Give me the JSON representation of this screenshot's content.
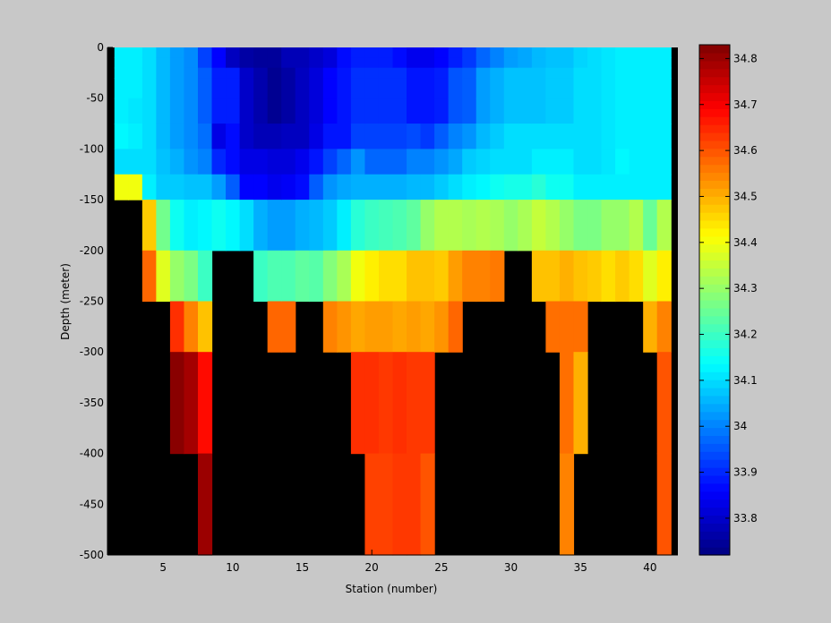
{
  "chart_data": {
    "type": "heatmap",
    "title": "",
    "xlabel": "Station (number)",
    "ylabel": "Depth (meter)",
    "xlim": [
      1,
      42
    ],
    "ylim": [
      -500,
      0
    ],
    "x_ticks": [
      5,
      10,
      15,
      20,
      25,
      30,
      35,
      40
    ],
    "y_ticks": [
      0,
      -50,
      -100,
      -150,
      -200,
      -250,
      -300,
      -350,
      -400,
      -450,
      -500
    ],
    "depth_levels": [
      0,
      -10,
      -20,
      -30,
      -50,
      -75,
      -100,
      -125,
      -150,
      -200,
      -250,
      -300,
      -400,
      -500
    ],
    "colorbar": {
      "colormap": "jet",
      "range": [
        33.72,
        34.83
      ],
      "ticks": [
        33.8,
        33.9,
        34,
        34.1,
        34.2,
        34.3,
        34.4,
        34.5,
        34.6,
        34.7,
        34.8
      ]
    },
    "no_data_color": "#000000",
    "background_color": "#c8c8c8",
    "stations": [
      {
        "x": 2,
        "values": [
          34.12,
          34.12,
          34.12,
          34.12,
          34.12,
          34.13,
          34.1,
          34.4,
          null,
          null,
          null,
          null,
          null
        ]
      },
      {
        "x": 3,
        "values": [
          34.12,
          34.12,
          34.12,
          34.12,
          34.11,
          34.12,
          34.1,
          34.4,
          null,
          null,
          null,
          null,
          null
        ]
      },
      {
        "x": 4,
        "values": [
          34.1,
          34.1,
          34.1,
          34.1,
          34.1,
          34.1,
          34.1,
          34.12,
          34.47,
          34.58,
          null,
          null,
          null
        ]
      },
      {
        "x": 5,
        "values": [
          34.06,
          34.06,
          34.06,
          34.06,
          34.06,
          34.06,
          34.07,
          34.08,
          34.26,
          34.38,
          null,
          null,
          null
        ]
      },
      {
        "x": 6,
        "values": [
          34.03,
          34.03,
          34.03,
          34.03,
          34.03,
          34.03,
          34.05,
          34.08,
          34.15,
          34.3,
          34.64,
          34.82,
          null
        ]
      },
      {
        "x": 7,
        "values": [
          34.01,
          34.01,
          34.01,
          34.01,
          34.01,
          34.01,
          34.02,
          34.07,
          34.12,
          34.27,
          34.55,
          34.79,
          null
        ]
      },
      {
        "x": 8,
        "values": [
          33.93,
          33.93,
          33.96,
          33.96,
          33.96,
          33.98,
          34.0,
          34.07,
          34.13,
          34.2,
          34.48,
          34.68,
          34.8
        ]
      },
      {
        "x": 9,
        "values": [
          33.86,
          33.86,
          33.89,
          33.89,
          33.89,
          33.83,
          33.9,
          34.03,
          34.15,
          null,
          null,
          null,
          null
        ]
      },
      {
        "x": 10,
        "values": [
          33.79,
          33.79,
          33.89,
          33.89,
          33.89,
          33.87,
          33.87,
          33.96,
          34.13,
          null,
          null,
          null,
          null
        ]
      },
      {
        "x": 11,
        "values": [
          33.76,
          33.76,
          33.8,
          33.8,
          33.8,
          33.8,
          33.83,
          33.86,
          34.1,
          null,
          null,
          null,
          null
        ]
      },
      {
        "x": 12,
        "values": [
          33.75,
          33.75,
          33.77,
          33.77,
          33.77,
          33.78,
          33.83,
          33.86,
          34.05,
          34.2,
          null,
          null,
          null
        ]
      },
      {
        "x": 13,
        "values": [
          33.75,
          33.75,
          33.74,
          33.74,
          33.74,
          33.78,
          33.82,
          33.84,
          34.03,
          34.22,
          34.58,
          null,
          null
        ]
      },
      {
        "x": 14,
        "values": [
          33.78,
          33.78,
          33.76,
          33.76,
          33.76,
          33.79,
          33.82,
          33.85,
          34.03,
          34.22,
          34.58,
          null,
          null
        ]
      },
      {
        "x": 15,
        "values": [
          33.78,
          33.78,
          33.79,
          33.79,
          33.79,
          33.79,
          33.84,
          33.87,
          34.05,
          34.24,
          null,
          null,
          null
        ]
      },
      {
        "x": 16,
        "values": [
          33.8,
          33.8,
          33.82,
          33.82,
          33.82,
          33.83,
          33.88,
          33.96,
          34.06,
          34.23,
          null,
          null,
          null
        ]
      },
      {
        "x": 17,
        "values": [
          33.82,
          33.82,
          33.86,
          33.86,
          33.86,
          33.88,
          33.93,
          34.02,
          34.08,
          34.28,
          34.55,
          null,
          null
        ]
      },
      {
        "x": 18,
        "values": [
          33.87,
          33.87,
          33.88,
          33.88,
          33.88,
          33.88,
          33.97,
          34.04,
          34.12,
          34.32,
          34.53,
          null,
          null
        ]
      },
      {
        "x": 19,
        "values": [
          33.89,
          33.89,
          33.91,
          33.91,
          33.91,
          33.93,
          34.02,
          34.05,
          34.18,
          34.4,
          34.51,
          34.64,
          null
        ]
      },
      {
        "x": 20,
        "values": [
          33.89,
          33.89,
          33.91,
          33.91,
          33.91,
          33.93,
          33.97,
          34.05,
          34.2,
          34.43,
          34.52,
          34.64,
          34.62
        ]
      },
      {
        "x": 21,
        "values": [
          33.89,
          33.89,
          33.91,
          33.91,
          33.91,
          33.93,
          33.97,
          34.05,
          34.21,
          34.45,
          34.52,
          34.63,
          34.62
        ]
      },
      {
        "x": 22,
        "values": [
          33.87,
          33.87,
          33.91,
          33.91,
          33.91,
          33.93,
          33.97,
          34.05,
          34.22,
          34.45,
          34.51,
          34.64,
          34.63
        ]
      },
      {
        "x": 23,
        "values": [
          33.84,
          33.84,
          33.88,
          33.88,
          33.88,
          33.94,
          34.0,
          34.06,
          34.24,
          34.48,
          34.52,
          34.63,
          34.63
        ]
      },
      {
        "x": 24,
        "values": [
          33.84,
          33.84,
          33.88,
          33.88,
          33.88,
          33.92,
          34.0,
          34.06,
          34.3,
          34.48,
          34.51,
          34.63,
          34.6
        ]
      },
      {
        "x": 25,
        "values": [
          33.86,
          33.86,
          33.89,
          33.89,
          33.89,
          33.96,
          34.02,
          34.08,
          34.33,
          34.47,
          34.53,
          null,
          null
        ]
      },
      {
        "x": 26,
        "values": [
          33.89,
          33.89,
          33.95,
          33.95,
          33.95,
          34.0,
          34.04,
          34.1,
          34.33,
          34.52,
          34.58,
          null,
          null
        ]
      },
      {
        "x": 27,
        "values": [
          33.92,
          33.92,
          33.96,
          33.96,
          33.96,
          34.02,
          34.08,
          34.12,
          34.32,
          34.55,
          null,
          null,
          null
        ]
      },
      {
        "x": 28,
        "values": [
          33.97,
          33.97,
          34.03,
          34.03,
          34.03,
          34.06,
          34.09,
          34.13,
          34.33,
          34.55,
          null,
          null,
          null
        ]
      },
      {
        "x": 29,
        "values": [
          34.0,
          34.0,
          34.05,
          34.05,
          34.05,
          34.08,
          34.1,
          34.15,
          34.32,
          34.56,
          null,
          null,
          null
        ]
      },
      {
        "x": 30,
        "values": [
          34.03,
          34.03,
          34.07,
          34.07,
          34.07,
          34.1,
          34.1,
          34.16,
          34.3,
          null,
          null,
          null,
          null
        ]
      },
      {
        "x": 31,
        "values": [
          34.04,
          34.04,
          34.07,
          34.07,
          34.07,
          34.1,
          34.1,
          34.16,
          34.32,
          null,
          null,
          null,
          null
        ]
      },
      {
        "x": 32,
        "values": [
          34.06,
          34.06,
          34.07,
          34.07,
          34.07,
          34.1,
          34.12,
          34.18,
          34.35,
          34.48,
          null,
          null,
          null
        ]
      },
      {
        "x": 33,
        "values": [
          34.07,
          34.07,
          34.08,
          34.08,
          34.08,
          34.1,
          34.12,
          34.15,
          34.33,
          34.48,
          34.57,
          null,
          null
        ]
      },
      {
        "x": 34,
        "values": [
          34.07,
          34.07,
          34.08,
          34.08,
          34.08,
          34.1,
          34.12,
          34.15,
          34.3,
          34.5,
          34.57,
          34.57,
          34.55
        ]
      },
      {
        "x": 35,
        "values": [
          34.09,
          34.09,
          34.1,
          34.1,
          34.1,
          34.1,
          34.1,
          34.12,
          34.27,
          34.48,
          34.57,
          34.5,
          null
        ]
      },
      {
        "x": 36,
        "values": [
          34.1,
          34.1,
          34.1,
          34.1,
          34.1,
          34.1,
          34.1,
          34.12,
          34.27,
          34.47,
          null,
          null,
          null
        ]
      },
      {
        "x": 37,
        "values": [
          34.11,
          34.11,
          34.11,
          34.11,
          34.11,
          34.11,
          34.11,
          34.12,
          34.3,
          34.45,
          null,
          null,
          null
        ]
      },
      {
        "x": 38,
        "values": [
          34.12,
          34.12,
          34.12,
          34.12,
          34.12,
          34.12,
          34.13,
          34.12,
          34.3,
          34.47,
          null,
          null,
          null
        ]
      },
      {
        "x": 39,
        "values": [
          34.12,
          34.12,
          34.12,
          34.12,
          34.12,
          34.12,
          34.12,
          34.12,
          34.33,
          34.45,
          null,
          null,
          null
        ]
      },
      {
        "x": 40,
        "values": [
          34.12,
          34.12,
          34.12,
          34.12,
          34.12,
          34.12,
          34.12,
          34.12,
          34.25,
          34.38,
          34.5,
          null,
          null
        ]
      },
      {
        "x": 41,
        "values": [
          34.12,
          34.12,
          34.12,
          34.12,
          34.12,
          34.12,
          34.12,
          34.12,
          34.33,
          34.43,
          34.55,
          34.6,
          34.6
        ]
      }
    ]
  }
}
